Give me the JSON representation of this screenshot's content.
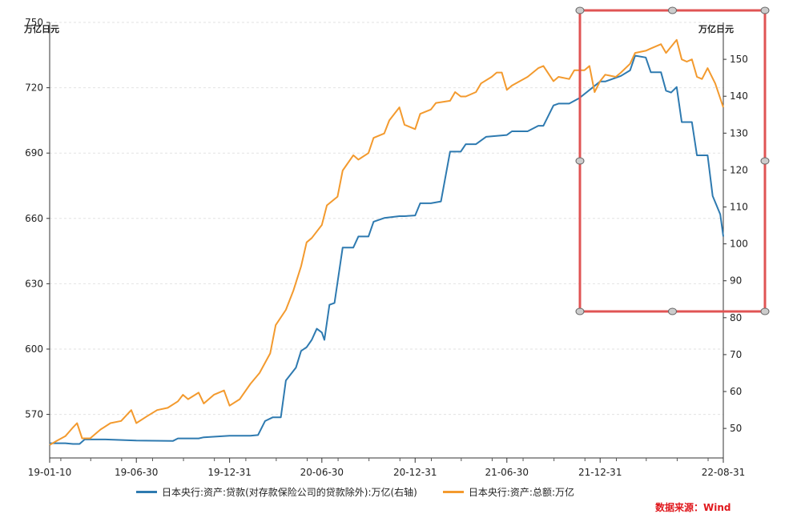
{
  "chart_data": {
    "type": "line",
    "left_unit": "万亿日元",
    "right_unit": "万亿日元",
    "x_ticks": [
      "19-01-10",
      "19-06-30",
      "19-12-31",
      "20-06-30",
      "20-12-31",
      "21-06-30",
      "21-12-31",
      "22-08-31"
    ],
    "x_range": [
      "2019-01-10",
      "2022-08-31"
    ],
    "y_left_range": [
      550,
      750
    ],
    "y_left_ticks": [
      570,
      600,
      630,
      660,
      690,
      720,
      750
    ],
    "y_right_range": [
      42,
      160
    ],
    "y_right_ticks": [
      50,
      60,
      70,
      80,
      90,
      100,
      110,
      120,
      130,
      140,
      150
    ],
    "grid": true,
    "legend_position": "bottom",
    "source": "数据来源：Wind",
    "series": [
      {
        "name": "日本央行:资产:贷款(对存款保险公司的贷款除外):万亿(右轴)",
        "axis": "right",
        "color": "#2e7ab0",
        "points": [
          [
            "2019-01-10",
            46.0
          ],
          [
            "2019-02-10",
            46.0
          ],
          [
            "2019-02-25",
            45.8
          ],
          [
            "2019-03-10",
            45.8
          ],
          [
            "2019-03-20",
            47.0
          ],
          [
            "2019-04-30",
            47.0
          ],
          [
            "2019-06-30",
            46.7
          ],
          [
            "2019-09-10",
            46.6
          ],
          [
            "2019-09-20",
            47.3
          ],
          [
            "2019-10-31",
            47.3
          ],
          [
            "2019-11-10",
            47.6
          ],
          [
            "2019-12-31",
            48.0
          ],
          [
            "2020-02-10",
            48.0
          ],
          [
            "2020-02-25",
            48.2
          ],
          [
            "2020-03-10",
            52.0
          ],
          [
            "2020-03-25",
            53.0
          ],
          [
            "2020-04-10",
            53.0
          ],
          [
            "2020-04-20",
            63.0
          ],
          [
            "2020-05-10",
            66.5
          ],
          [
            "2020-05-20",
            71.0
          ],
          [
            "2020-05-31",
            72.0
          ],
          [
            "2020-06-10",
            74.0
          ],
          [
            "2020-06-20",
            77.0
          ],
          [
            "2020-06-30",
            76.0
          ],
          [
            "2020-07-05",
            74.0
          ],
          [
            "2020-07-15",
            83.5
          ],
          [
            "2020-07-25",
            84.0
          ],
          [
            "2020-08-10",
            99.0
          ],
          [
            "2020-08-31",
            99.0
          ],
          [
            "2020-09-10",
            102.0
          ],
          [
            "2020-09-30",
            102.0
          ],
          [
            "2020-10-10",
            106.0
          ],
          [
            "2020-10-31",
            107.0
          ],
          [
            "2020-11-30",
            107.5
          ],
          [
            "2020-12-10",
            107.5
          ],
          [
            "2020-12-31",
            107.7
          ],
          [
            "2021-01-10",
            111.0
          ],
          [
            "2021-01-31",
            111.0
          ],
          [
            "2021-02-20",
            111.5
          ],
          [
            "2021-03-10",
            125.0
          ],
          [
            "2021-03-31",
            125.0
          ],
          [
            "2021-04-10",
            127.0
          ],
          [
            "2021-04-30",
            127.0
          ],
          [
            "2021-05-20",
            129.0
          ],
          [
            "2021-06-30",
            129.5
          ],
          [
            "2021-07-10",
            130.5
          ],
          [
            "2021-08-10",
            130.5
          ],
          [
            "2021-08-31",
            132.0
          ],
          [
            "2021-09-10",
            132.0
          ],
          [
            "2021-09-30",
            137.5
          ],
          [
            "2021-10-10",
            138.0
          ],
          [
            "2021-10-31",
            138.0
          ],
          [
            "2021-11-20",
            139.5
          ],
          [
            "2021-12-31",
            144.0
          ],
          [
            "2022-01-10",
            144.0
          ],
          [
            "2022-02-10",
            145.5
          ],
          [
            "2022-02-28",
            147.0
          ],
          [
            "2022-03-10",
            151.0
          ],
          [
            "2022-03-31",
            150.5
          ],
          [
            "2022-04-10",
            146.5
          ],
          [
            "2022-04-30",
            146.5
          ],
          [
            "2022-05-10",
            141.5
          ],
          [
            "2022-05-20",
            141.0
          ],
          [
            "2022-05-31",
            142.5
          ],
          [
            "2022-06-10",
            133.0
          ],
          [
            "2022-06-30",
            133.0
          ],
          [
            "2022-07-10",
            124.0
          ],
          [
            "2022-07-31",
            124.0
          ],
          [
            "2022-08-10",
            113.0
          ],
          [
            "2022-08-25",
            108.0
          ],
          [
            "2022-08-31",
            102.0
          ]
        ]
      },
      {
        "name": "日本央行:资产:总额:万亿",
        "axis": "left",
        "color": "#f39a2e",
        "points": [
          [
            "2019-01-10",
            556
          ],
          [
            "2019-01-25",
            558
          ],
          [
            "2019-02-10",
            560
          ],
          [
            "2019-02-25",
            564
          ],
          [
            "2019-03-05",
            566
          ],
          [
            "2019-03-15",
            559
          ],
          [
            "2019-03-31",
            559
          ],
          [
            "2019-04-20",
            563
          ],
          [
            "2019-05-10",
            566
          ],
          [
            "2019-05-31",
            567
          ],
          [
            "2019-06-20",
            572
          ],
          [
            "2019-06-30",
            566
          ],
          [
            "2019-07-20",
            569
          ],
          [
            "2019-08-10",
            572
          ],
          [
            "2019-08-31",
            573
          ],
          [
            "2019-09-20",
            576
          ],
          [
            "2019-09-30",
            579
          ],
          [
            "2019-10-10",
            577
          ],
          [
            "2019-10-31",
            580
          ],
          [
            "2019-11-10",
            575
          ],
          [
            "2019-11-30",
            579
          ],
          [
            "2019-12-20",
            581
          ],
          [
            "2019-12-31",
            574
          ],
          [
            "2020-01-20",
            577
          ],
          [
            "2020-02-10",
            584
          ],
          [
            "2020-02-28",
            589
          ],
          [
            "2020-03-20",
            598
          ],
          [
            "2020-03-31",
            611
          ],
          [
            "2020-04-20",
            618
          ],
          [
            "2020-05-05",
            627
          ],
          [
            "2020-05-20",
            638
          ],
          [
            "2020-05-31",
            649
          ],
          [
            "2020-06-10",
            651
          ],
          [
            "2020-06-30",
            657
          ],
          [
            "2020-07-10",
            666
          ],
          [
            "2020-07-31",
            670
          ],
          [
            "2020-08-10",
            682
          ],
          [
            "2020-08-31",
            689
          ],
          [
            "2020-09-10",
            687
          ],
          [
            "2020-09-30",
            690
          ],
          [
            "2020-10-10",
            697
          ],
          [
            "2020-10-31",
            699
          ],
          [
            "2020-11-10",
            705
          ],
          [
            "2020-11-30",
            711
          ],
          [
            "2020-12-10",
            703
          ],
          [
            "2020-12-31",
            701
          ],
          [
            "2021-01-10",
            708
          ],
          [
            "2021-01-31",
            710
          ],
          [
            "2021-02-10",
            713
          ],
          [
            "2021-03-10",
            714
          ],
          [
            "2021-03-20",
            718
          ],
          [
            "2021-03-31",
            716
          ],
          [
            "2021-04-10",
            716
          ],
          [
            "2021-04-30",
            718
          ],
          [
            "2021-05-10",
            722
          ],
          [
            "2021-05-31",
            725
          ],
          [
            "2021-06-10",
            727
          ],
          [
            "2021-06-20",
            727
          ],
          [
            "2021-06-30",
            719
          ],
          [
            "2021-07-10",
            721
          ],
          [
            "2021-08-10",
            725
          ],
          [
            "2021-08-31",
            729
          ],
          [
            "2021-09-10",
            730
          ],
          [
            "2021-09-30",
            723
          ],
          [
            "2021-10-10",
            725
          ],
          [
            "2021-10-31",
            724
          ],
          [
            "2021-11-10",
            728
          ],
          [
            "2021-11-30",
            728
          ],
          [
            "2021-12-10",
            730
          ],
          [
            "2021-12-20",
            718
          ],
          [
            "2021-12-31",
            723
          ],
          [
            "2022-01-10",
            726
          ],
          [
            "2022-01-31",
            725
          ],
          [
            "2022-02-10",
            727
          ],
          [
            "2022-02-28",
            731
          ],
          [
            "2022-03-10",
            736
          ],
          [
            "2022-03-31",
            737
          ],
          [
            "2022-04-10",
            738
          ],
          [
            "2022-04-30",
            740
          ],
          [
            "2022-05-10",
            736
          ],
          [
            "2022-05-31",
            742
          ],
          [
            "2022-06-10",
            733
          ],
          [
            "2022-06-20",
            732
          ],
          [
            "2022-06-30",
            733
          ],
          [
            "2022-07-10",
            725
          ],
          [
            "2022-07-20",
            724
          ],
          [
            "2022-07-31",
            729
          ],
          [
            "2022-08-15",
            722
          ],
          [
            "2022-08-31",
            711
          ]
        ]
      }
    ]
  },
  "annotation": {
    "color": "#e05454",
    "handle_color": "#cccccc"
  }
}
